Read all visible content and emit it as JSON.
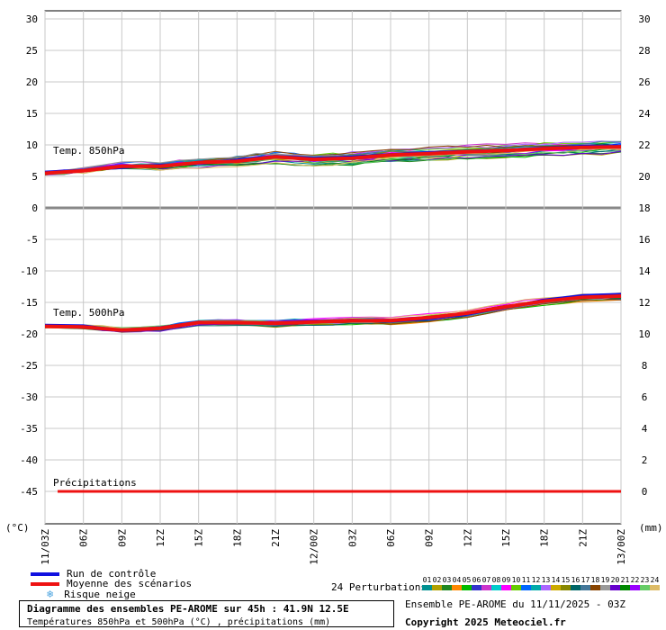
{
  "chart_data": {
    "type": "line",
    "x_labels": [
      "11/03Z",
      "06Z",
      "09Z",
      "12Z",
      "15Z",
      "18Z",
      "21Z",
      "12/00Z",
      "03Z",
      "06Z",
      "09Z",
      "12Z",
      "15Z",
      "18Z",
      "21Z",
      "13/00Z"
    ],
    "left_axis": {
      "ticks": [
        30,
        25,
        20,
        15,
        10,
        5,
        0,
        -5,
        -10,
        -15,
        -20,
        -25,
        -30,
        -35,
        -40,
        -45
      ],
      "unit": "(°C)",
      "ylim": [
        -48,
        31
      ]
    },
    "right_axis": {
      "ticks": [
        30,
        28,
        26,
        24,
        22,
        20,
        18,
        16,
        14,
        12,
        10,
        8,
        6,
        4,
        2,
        0
      ],
      "unit": "(mm)"
    },
    "annotations": {
      "t850": "Temp. 850hPa",
      "t500": "Temp. 500hPa",
      "precip": "Précipitations"
    },
    "grid": true,
    "t850_mean": [
      5.5,
      5.9,
      6.6,
      6.6,
      7.2,
      7.4,
      8.1,
      7.7,
      7.9,
      8.4,
      8.6,
      8.9,
      9.1,
      9.4,
      9.6,
      9.7
    ],
    "t850_control": [
      5.7,
      6.0,
      6.4,
      6.8,
      7.0,
      7.6,
      8.2,
      7.9,
      8.1,
      8.5,
      8.8,
      9.0,
      9.2,
      9.5,
      9.8,
      9.9
    ],
    "t500_mean": [
      -18.8,
      -18.9,
      -19.4,
      -19.1,
      -18.2,
      -18.2,
      -18.3,
      -18.1,
      -17.9,
      -17.9,
      -17.4,
      -16.7,
      -15.7,
      -14.8,
      -14.2,
      -14.0
    ],
    "t500_control": [
      -18.6,
      -18.7,
      -19.5,
      -19.0,
      -18.1,
      -18.3,
      -18.2,
      -18.0,
      -17.8,
      -18.0,
      -17.6,
      -16.9,
      -15.8,
      -14.6,
      -13.9,
      -13.7
    ],
    "precip_mean": [
      0,
      0,
      0,
      0,
      0,
      0,
      0,
      0,
      0,
      0,
      0,
      0,
      0,
      0,
      0,
      0
    ],
    "n_perturbations": 24
  },
  "legend": {
    "control": "Run de contrôle",
    "mean": "Moyenne des scénarios",
    "snow": "Risque neige",
    "snow_icon": "snowflake-icon",
    "perturbations_label": "24 Perturbations",
    "perturbation_numbers": [
      "01",
      "02",
      "03",
      "04",
      "05",
      "06",
      "07",
      "08",
      "09",
      "10",
      "11",
      "12",
      "13",
      "14",
      "15",
      "16",
      "17",
      "18",
      "19",
      "20",
      "21",
      "22",
      "23",
      "24"
    ]
  },
  "colors": {
    "control": "#1010e0",
    "mean": "#ee1111",
    "perturbations": [
      "#009090",
      "#b0a000",
      "#228822",
      "#ff8800",
      "#00bb00",
      "#3333cc",
      "#cc33cc",
      "#00cccc",
      "#ff00ff",
      "#66cc00",
      "#0066ff",
      "#00aaaa",
      "#aa66ff",
      "#ccaa00",
      "#888800",
      "#006666",
      "#447799",
      "#884400",
      "#999999",
      "#6600cc",
      "#008800",
      "#9900ff",
      "#66cc66",
      "#ddbb66"
    ]
  },
  "footer": {
    "title": "Diagramme des ensembles PE-AROME sur 45h : 41.9N 12.5E",
    "subtitle": "Températures 850hPa et 500hPa (°C) , précipitations (mm)",
    "ensemble_info": "Ensemble PE-AROME du 11/11/2025 - 03Z",
    "copyright": "Copyright 2025 Meteociel.fr"
  }
}
